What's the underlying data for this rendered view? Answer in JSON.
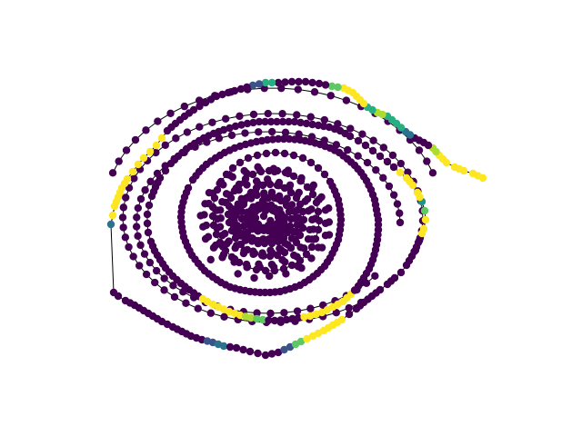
{
  "figure": {
    "kind": "network graph (spiral chain of nodes)",
    "background": "#ffffff",
    "edge_color": "#000000",
    "colormap": "viridis",
    "palette": [
      "#440154",
      "#482475",
      "#3b528b",
      "#2c728e",
      "#21918c",
      "#28ae80",
      "#5ec962",
      "#addc30",
      "#fde725"
    ],
    "axes_visible": false,
    "title": ""
  }
}
